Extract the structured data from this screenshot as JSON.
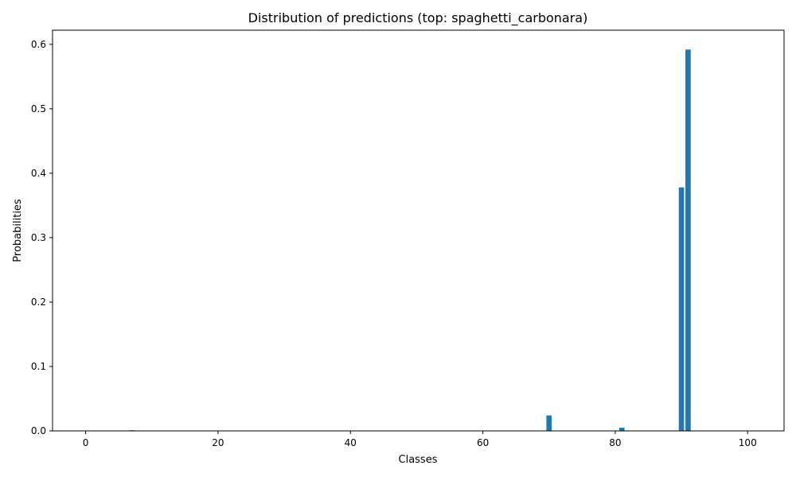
{
  "chart_data": {
    "type": "bar",
    "title": "Distribution of predictions (top: spaghetti_carbonara)",
    "xlabel": "Classes",
    "ylabel": "Probabilities",
    "xlim": [
      -5,
      105.5
    ],
    "ylim": [
      0,
      0.622
    ],
    "xticks": [
      0,
      20,
      40,
      60,
      80,
      100
    ],
    "yticks": [
      0.0,
      0.1,
      0.2,
      0.3,
      0.4,
      0.5,
      0.6
    ],
    "grid": false,
    "bar_color": "#1f77b4",
    "bars": [
      {
        "x": 7,
        "y": 0.001
      },
      {
        "x": 70,
        "y": 0.024
      },
      {
        "x": 81,
        "y": 0.005
      },
      {
        "x": 90,
        "y": 0.378
      },
      {
        "x": 91,
        "y": 0.592
      }
    ]
  }
}
